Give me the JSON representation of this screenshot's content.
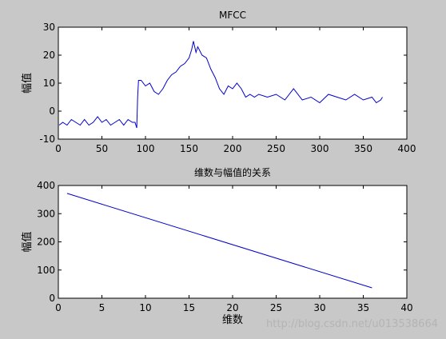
{
  "watermark": "http://blog.csdn.net/u013538664",
  "chart_data": [
    {
      "type": "line",
      "title": "MFCC",
      "xlabel": "",
      "ylabel": "幅值",
      "xlim": [
        0,
        400
      ],
      "ylim": [
        -10,
        30
      ],
      "xticks": [
        0,
        50,
        100,
        150,
        200,
        250,
        300,
        350,
        400
      ],
      "yticks": [
        -10,
        0,
        10,
        20,
        30
      ],
      "grid": false,
      "line_color": "#0000cc",
      "series": [
        {
          "x": [
            1,
            5,
            10,
            15,
            20,
            25,
            30,
            35,
            40,
            45,
            50,
            55,
            60,
            65,
            70,
            75,
            80,
            85,
            88,
            90,
            91,
            92,
            95,
            100,
            105,
            110,
            115,
            120,
            125,
            130,
            135,
            140,
            145,
            150,
            153,
            155,
            158,
            160,
            165,
            170,
            175,
            180,
            185,
            190,
            195,
            200,
            205,
            210,
            215,
            220,
            225,
            230,
            240,
            250,
            260,
            270,
            280,
            290,
            300,
            310,
            320,
            330,
            340,
            350,
            360,
            365,
            370,
            372
          ],
          "y": [
            -5,
            -4,
            -5,
            -3,
            -4,
            -5,
            -3,
            -5,
            -4,
            -2,
            -4,
            -3,
            -5,
            -4,
            -3,
            -5,
            -3,
            -4,
            -4,
            -6,
            5,
            11,
            11,
            9,
            10,
            7,
            6,
            8,
            11,
            13,
            14,
            16,
            17,
            19,
            22,
            25,
            21,
            23,
            20,
            19,
            15,
            12,
            8,
            6,
            9,
            8,
            10,
            8,
            5,
            6,
            5,
            6,
            5,
            6,
            4,
            8,
            4,
            5,
            3,
            6,
            5,
            4,
            6,
            4,
            5,
            3,
            4,
            5
          ]
        }
      ]
    },
    {
      "type": "line",
      "title": "维数与幅值的关系",
      "xlabel": "维数",
      "ylabel": "幅值",
      "xlim": [
        0,
        40
      ],
      "ylim": [
        0,
        400
      ],
      "xticks": [
        0,
        5,
        10,
        15,
        20,
        25,
        30,
        35,
        40
      ],
      "yticks": [
        0,
        100,
        200,
        300,
        400
      ],
      "grid": false,
      "line_color": "#0000cc",
      "series": [
        {
          "x": [
            1,
            36
          ],
          "y": [
            372,
            37
          ]
        }
      ]
    }
  ]
}
